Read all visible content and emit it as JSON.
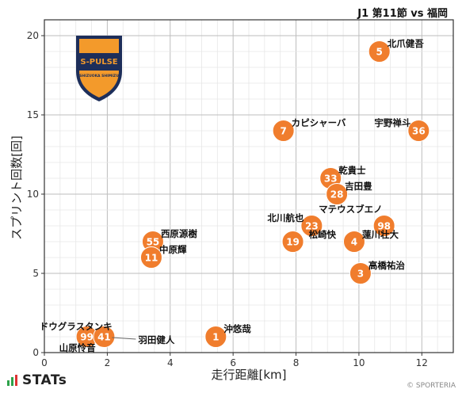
{
  "header": {
    "match_title": "J1 第11節 vs 福岡"
  },
  "club_badge": {
    "text": "S-PULSE",
    "subtext": "SHIZUOKA SHIMIZU",
    "colors": {
      "orange": "#f39a2b",
      "navy": "#1d2e5a"
    }
  },
  "footer": {
    "brand": "STATs",
    "copyright": "© SPORTERIA"
  },
  "colors": {
    "point": "#f07d2d",
    "point_text": "#ffffff",
    "grid": "#cfcfcf",
    "axis": "#333333"
  },
  "chart_data": {
    "type": "scatter",
    "xlabel": "走行距離[km]",
    "ylabel": "スプリント回数[回]",
    "xlim": [
      0,
      13
    ],
    "ylim": [
      0,
      21
    ],
    "xticks": [
      0,
      2,
      4,
      6,
      8,
      10,
      12
    ],
    "yticks": [
      0,
      5,
      10,
      15,
      20
    ],
    "grid": true,
    "points": [
      {
        "number": "5",
        "name": "北爪健吾",
        "x": 10.65,
        "y": 19
      },
      {
        "number": "7",
        "name": "カピシャーバ",
        "x": 7.6,
        "y": 14
      },
      {
        "number": "36",
        "name": "宇野禅斗",
        "x": 11.9,
        "y": 14
      },
      {
        "number": "33",
        "name": "乾貴士",
        "x": 9.1,
        "y": 11
      },
      {
        "number": "28",
        "name": "吉田豊",
        "x": 9.3,
        "y": 10
      },
      {
        "number": "98",
        "name": "マテウスブエノ",
        "x": 10.8,
        "y": 8
      },
      {
        "number": "23",
        "name": "北川航也",
        "x": 8.5,
        "y": 8
      },
      {
        "number": "19",
        "name": "松崎快",
        "x": 7.9,
        "y": 7
      },
      {
        "number": "4",
        "name": "蓮川壮大",
        "x": 9.85,
        "y": 7
      },
      {
        "number": "55",
        "name": "西原源樹",
        "x": 3.45,
        "y": 7
      },
      {
        "number": "11",
        "name": "中原輝",
        "x": 3.4,
        "y": 6
      },
      {
        "number": "3",
        "name": "高橋祐治",
        "x": 10.05,
        "y": 5
      },
      {
        "number": "1",
        "name": "沖悠哉",
        "x": 5.45,
        "y": 1
      },
      {
        "number": "99",
        "name": "ドウグラスタンキ",
        "x": 1.35,
        "y": 1
      },
      {
        "number": "41",
        "name": "羽田健人",
        "x": 1.9,
        "y": 1
      },
      {
        "number": "",
        "name": "山原怜音",
        "x": 1.25,
        "y": 0.9
      }
    ]
  }
}
